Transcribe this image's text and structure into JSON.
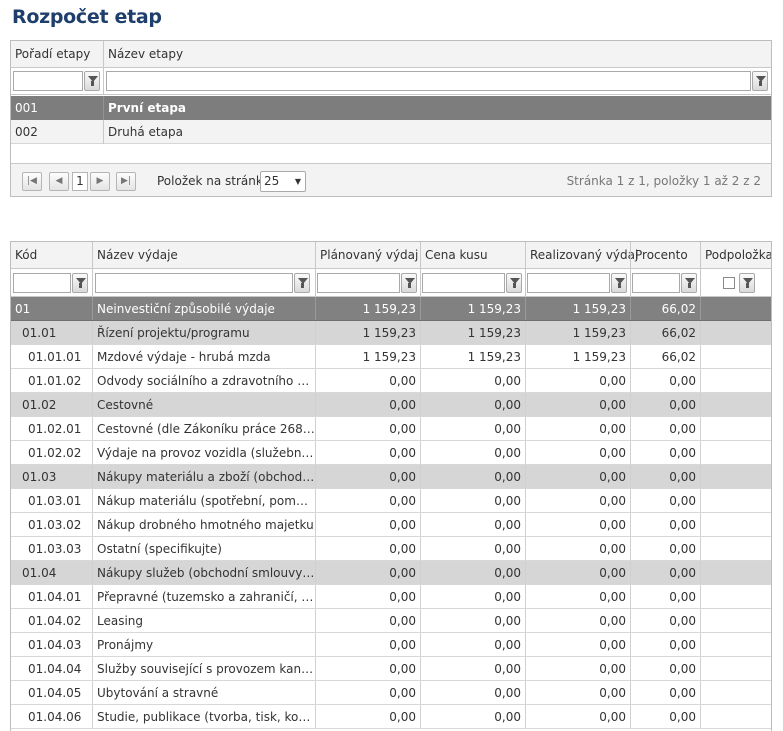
{
  "page_title": "Rozpočet etap",
  "stages_grid": {
    "columns": [
      "Pořadí etapy",
      "Název etapy"
    ],
    "rows": [
      {
        "order": "001",
        "name": "První etapa",
        "selected": true
      },
      {
        "order": "002",
        "name": "Druhá etapa",
        "selected": false
      }
    ],
    "pager": {
      "first_icon": "first-page-icon",
      "prev_icon": "prev-page-icon",
      "page": "1",
      "next_icon": "next-page-icon",
      "last_icon": "last-page-icon",
      "page_size_label": "Položek na stránku",
      "page_size": "25",
      "info": "Stránka 1 z 1, položky 1 až 2 z 2"
    }
  },
  "budget_grid": {
    "columns": [
      "Kód",
      "Název výdaje",
      "Plánovaný výdaj",
      "Cena kusu",
      "Realizovaný výdaj",
      "Procento",
      "Podpoložka"
    ],
    "rows": [
      {
        "level": 0,
        "code": "01",
        "name": "Neinvestiční způsobilé výdaje",
        "planned": "1 159,23",
        "price": "1 159,23",
        "realized": "1 159,23",
        "percent": "66,02",
        "sub": false
      },
      {
        "level": 1,
        "code": "01.01",
        "name": "Řízení projektu/programu",
        "planned": "1 159,23",
        "price": "1 159,23",
        "realized": "1 159,23",
        "percent": "66,02",
        "sub": false
      },
      {
        "level": 2,
        "code": "01.01.01",
        "name": "Mzdové výdaje - hrubá mzda",
        "planned": "1 159,23",
        "price": "1 159,23",
        "realized": "1 159,23",
        "percent": "66,02",
        "sub": false
      },
      {
        "level": 2,
        "code": "01.01.02",
        "name": "Odvody sociálního a zdravotního pojiš...",
        "planned": "0,00",
        "price": "0,00",
        "realized": "0,00",
        "percent": "0,00",
        "sub": false
      },
      {
        "level": 1,
        "code": "01.02",
        "name": "Cestovné",
        "planned": "0,00",
        "price": "0,00",
        "realized": "0,00",
        "percent": "0,00",
        "sub": false
      },
      {
        "level": 2,
        "code": "01.02.01",
        "name": "Cestovné (dle Zákoníku práce 268/200...",
        "planned": "0,00",
        "price": "0,00",
        "realized": "0,00",
        "percent": "0,00",
        "sub": false
      },
      {
        "level": 2,
        "code": "01.02.02",
        "name": "Výdaje na provoz vozidla (služební vůz...",
        "planned": "0,00",
        "price": "0,00",
        "realized": "0,00",
        "percent": "0,00",
        "sub": false
      },
      {
        "level": 1,
        "code": "01.03",
        "name": "Nákupy materiálu a zboží (obchodní s...",
        "planned": "0,00",
        "price": "0,00",
        "realized": "0,00",
        "percent": "0,00",
        "sub": false
      },
      {
        "level": 2,
        "code": "01.03.01",
        "name": "Nákup materiálu (spotřební, pomocný)",
        "planned": "0,00",
        "price": "0,00",
        "realized": "0,00",
        "percent": "0,00",
        "sub": false
      },
      {
        "level": 2,
        "code": "01.03.02",
        "name": "Nákup drobného hmotného majetku",
        "planned": "0,00",
        "price": "0,00",
        "realized": "0,00",
        "percent": "0,00",
        "sub": false
      },
      {
        "level": 2,
        "code": "01.03.03",
        "name": "Ostatní (specifikujte)",
        "planned": "0,00",
        "price": "0,00",
        "realized": "0,00",
        "percent": "0,00",
        "sub": true
      },
      {
        "level": 1,
        "code": "01.04",
        "name": "Nákupy služeb (obchodní smlouvy, fakt...",
        "planned": "0,00",
        "price": "0,00",
        "realized": "0,00",
        "percent": "0,00",
        "sub": false
      },
      {
        "level": 2,
        "code": "01.04.01",
        "name": "Přepravné (tuzemsko a zahraničí, hro...",
        "planned": "0,00",
        "price": "0,00",
        "realized": "0,00",
        "percent": "0,00",
        "sub": false
      },
      {
        "level": 2,
        "code": "01.04.02",
        "name": "Leasing",
        "planned": "0,00",
        "price": "0,00",
        "realized": "0,00",
        "percent": "0,00",
        "sub": false
      },
      {
        "level": 2,
        "code": "01.04.03",
        "name": "Pronájmy",
        "planned": "0,00",
        "price": "0,00",
        "realized": "0,00",
        "percent": "0,00",
        "sub": false
      },
      {
        "level": 2,
        "code": "01.04.04",
        "name": "Služby související s provozem kancelář...",
        "planned": "0,00",
        "price": "0,00",
        "realized": "0,00",
        "percent": "0,00",
        "sub": false
      },
      {
        "level": 2,
        "code": "01.04.05",
        "name": "Ubytování a stravné",
        "planned": "0,00",
        "price": "0,00",
        "realized": "0,00",
        "percent": "0,00",
        "sub": false
      },
      {
        "level": 2,
        "code": "01.04.06",
        "name": "Studie, publikace (tvorba, tisk, kopírov...",
        "planned": "0,00",
        "price": "0,00",
        "realized": "0,00",
        "percent": "0,00",
        "sub": false
      }
    ]
  },
  "icons": {
    "filter": "filter-icon",
    "checkmark": "checkmark-icon",
    "dropdown": "chevron-down-icon"
  },
  "colors": {
    "title": "#1e3f6b",
    "selected_row": "#7d7d7d",
    "group_row": "#d6d6d6",
    "checkmark": "#2e7d1e"
  }
}
